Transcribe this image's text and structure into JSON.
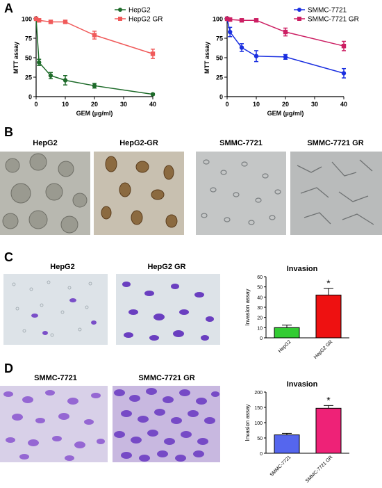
{
  "panels": {
    "A": "A",
    "B": "B",
    "C": "C",
    "D": "D"
  },
  "photos": {
    "b1": "HepG2",
    "b2": "HepG2-GR",
    "b3": "SMMC-7721",
    "b4": "SMMC-7721 GR",
    "c1": "HepG2",
    "c2": "HepG2 GR",
    "d1": "SMMC-7721",
    "d2": "SMMC-7721 GR"
  },
  "colors": {
    "hepg2": "#1e6b2a",
    "hepg2gr": "#f05a5a",
    "smmc": "#1a2fe0",
    "smmcgr": "#cc1f63",
    "bar_green": "#33cc33",
    "bar_red": "#ee1111",
    "bar_blue": "#5566ee",
    "bar_pink": "#ee2277"
  },
  "chart_data": [
    {
      "id": "mtt-hepg2",
      "type": "line",
      "ylabel": "MTT assay",
      "xlabel": "GEM (µg/ml)",
      "xlim": [
        0,
        40
      ],
      "ylim": [
        0,
        100
      ],
      "xticks": [
        0,
        10,
        20,
        30,
        40
      ],
      "yticks": [
        0,
        25,
        50,
        75,
        100
      ],
      "legend": "top-right",
      "series": [
        {
          "name": "HepG2",
          "color": "#1e6b2a",
          "marker": "circle",
          "x": [
            0,
            1,
            5,
            10,
            20,
            40
          ],
          "y": [
            100,
            44,
            27,
            21,
            14,
            3
          ],
          "err": [
            0,
            4,
            4,
            6,
            3,
            1
          ]
        },
        {
          "name": "HepG2 GR",
          "color": "#f05a5a",
          "marker": "square",
          "x": [
            0,
            1,
            5,
            10,
            20,
            40
          ],
          "y": [
            100,
            98,
            96,
            96,
            79,
            55
          ],
          "err": [
            0,
            1,
            1,
            1,
            5,
            6
          ]
        }
      ]
    },
    {
      "id": "mtt-smmc",
      "type": "line",
      "ylabel": "MTT assay",
      "xlabel": "GEM (µg/ml)",
      "xlim": [
        0,
        40
      ],
      "ylim": [
        0,
        100
      ],
      "xticks": [
        0,
        10,
        20,
        30,
        40
      ],
      "yticks": [
        0,
        25,
        50,
        75,
        100
      ],
      "legend": "top-right",
      "series": [
        {
          "name": "SMMC-7721",
          "color": "#1a2fe0",
          "marker": "circle",
          "x": [
            0,
            1,
            5,
            10,
            20,
            40
          ],
          "y": [
            100,
            83,
            63,
            52,
            51,
            30
          ],
          "err": [
            0,
            6,
            5,
            7,
            3,
            6
          ]
        },
        {
          "name": "SMMC-7721 GR",
          "color": "#cc1f63",
          "marker": "square",
          "x": [
            0,
            1,
            5,
            10,
            20,
            40
          ],
          "y": [
            100,
            99,
            98,
            98,
            83,
            65
          ],
          "err": [
            0,
            1,
            1,
            1,
            5,
            6
          ]
        }
      ]
    },
    {
      "id": "invasion-hepg2",
      "type": "bar",
      "title": "Invasion",
      "ylabel": "Invasion assay",
      "ylim": [
        0,
        60
      ],
      "yticks": [
        0,
        10,
        20,
        30,
        40,
        50,
        60
      ],
      "categories": [
        "HepG2",
        "HepG2 GR"
      ],
      "values": [
        10,
        42
      ],
      "err": [
        2.5,
        6.5
      ],
      "colors": [
        "#33cc33",
        "#ee1111"
      ],
      "annotations": [
        "",
        "*"
      ]
    },
    {
      "id": "invasion-smmc",
      "type": "bar",
      "title": "Invasion",
      "ylabel": "Invasion assay",
      "ylim": [
        0,
        200
      ],
      "yticks": [
        0,
        50,
        100,
        150,
        200
      ],
      "categories": [
        "SMMC-7721",
        "SMMC-7721 GR"
      ],
      "values": [
        60,
        147
      ],
      "err": [
        5,
        9
      ],
      "colors": [
        "#5566ee",
        "#ee2277"
      ],
      "annotations": [
        "",
        "*"
      ]
    }
  ]
}
